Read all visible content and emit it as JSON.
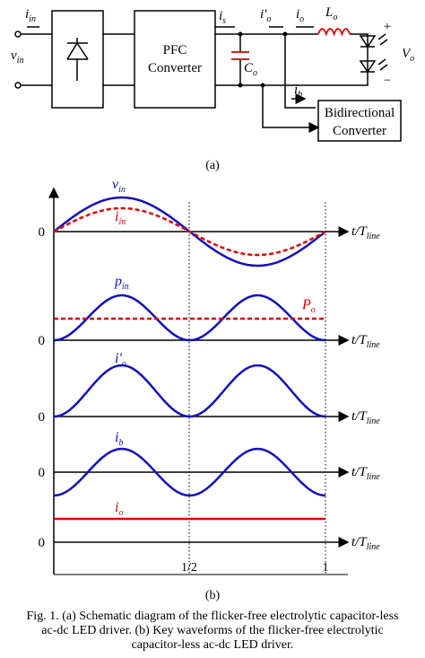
{
  "circuit": {
    "labels": [
      {
        "base": "i",
        "sub": "in"
      },
      {
        "base": "v",
        "sub": "in"
      },
      {
        "base": "i",
        "sub": "s"
      },
      {
        "base": "i'",
        "sub": "o"
      },
      {
        "base": "i",
        "sub": "o"
      },
      {
        "base": "L",
        "sub": "o"
      },
      {
        "base": "C",
        "sub": "o"
      },
      {
        "base": "V",
        "sub": "o"
      },
      {
        "base": "i",
        "sub": "b"
      }
    ],
    "pfc": [
      "PFC",
      "Converter"
    ],
    "bidirectional": [
      "Bidirectional",
      "Converter"
    ],
    "plus": "+",
    "minus": "−",
    "caption": "(a)"
  },
  "waveforms": {
    "traces": [
      {
        "base": "v",
        "sub": "in"
      },
      {
        "base": "i",
        "sub": "in"
      },
      {
        "base": "p",
        "sub": "in"
      },
      {
        "base": "P",
        "sub": "o"
      },
      {
        "base": "i'",
        "sub": "o"
      },
      {
        "base": "i",
        "sub": "b"
      },
      {
        "base": "i",
        "sub": "o"
      }
    ],
    "zero": "0",
    "time": {
      "base": "t/T",
      "sub": "line"
    },
    "half": "1/2",
    "one": "1",
    "caption": "(b)"
  },
  "figure_caption": [
    "Fig. 1. (a) Schematic diagram of the flicker-free electrolytic capacitor-less",
    "ac-dc LED driver. (b) Key waveforms of the flicker-free electrolytic",
    "capacitor-less ac-dc LED driver."
  ]
}
